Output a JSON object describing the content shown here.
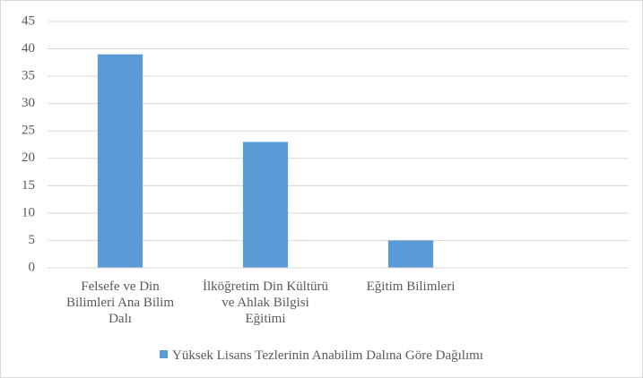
{
  "chart_data": {
    "type": "bar",
    "categories": [
      "Felsefe ve Din Bilimleri Ana Bilim Dalı",
      "İlköğretim Din Kültürü ve Ahlak Bilgisi Eğitimi",
      "Eğitim Bilimleri",
      null
    ],
    "series": [
      {
        "name": "Yüksek Lisans Tezlerinin Anabilim Dalına Göre Dağılımı",
        "color": "#5b9bd5",
        "values": [
          39,
          23,
          5,
          null
        ]
      }
    ],
    "ylim": [
      0,
      45
    ],
    "yticks": [
      0,
      5,
      10,
      15,
      20,
      25,
      30,
      35,
      40,
      45
    ],
    "grid": true,
    "legend": "bottom"
  }
}
